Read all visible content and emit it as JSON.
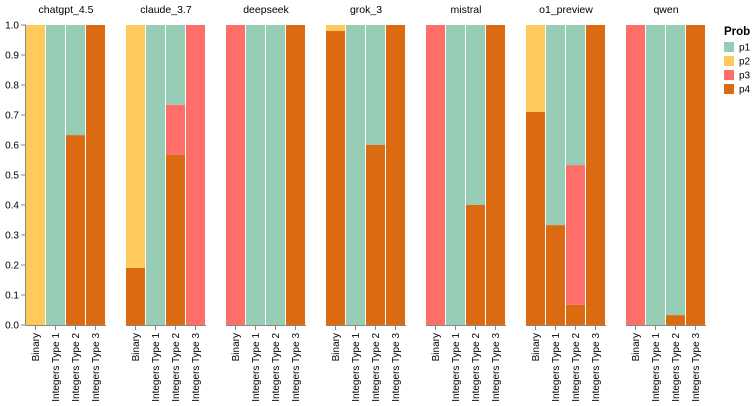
{
  "chart_data": {
    "type": "bar",
    "stacked": "normalized",
    "facets": [
      "chatgpt_4.5",
      "claude_3.7",
      "deepseek",
      "grok_3",
      "mistral",
      "o1_preview",
      "qwen"
    ],
    "categories": [
      "Binary",
      "Integers Type 1",
      "Integers Type 2",
      "Integers Type 3"
    ],
    "ylim": [
      0,
      1.0
    ],
    "yticks": [
      "0.0",
      "0.1",
      "0.2",
      "0.3",
      "0.4",
      "0.5",
      "0.6",
      "0.7",
      "0.8",
      "0.9",
      "1.0"
    ],
    "legend": {
      "title": "Prob",
      "entries": [
        {
          "name": "p1",
          "color": "#96cdb4"
        },
        {
          "name": "p2",
          "color": "#ffc95c"
        },
        {
          "name": "p3",
          "color": "#ff6e69"
        },
        {
          "name": "p4",
          "color": "#db6a10"
        }
      ]
    },
    "series": [
      {
        "name": "p4",
        "color": "#db6a10",
        "values": {
          "chatgpt_4.5": [
            0,
            0,
            0.633,
            1.0
          ],
          "claude_3.7": [
            0.19,
            0,
            0.567,
            0
          ],
          "deepseek": [
            0,
            0,
            0,
            1.0
          ],
          "grok_3": [
            0.98,
            0,
            0.6,
            1.0
          ],
          "mistral": [
            0,
            0,
            0.4,
            1.0
          ],
          "o1_preview": [
            0.71,
            0.333,
            0.067,
            1.0
          ],
          "qwen": [
            0,
            0,
            0.033,
            1.0
          ]
        }
      },
      {
        "name": "p3",
        "color": "#ff6e69",
        "values": {
          "chatgpt_4.5": [
            0,
            0,
            0,
            0
          ],
          "claude_3.7": [
            0,
            0,
            0.167,
            1.0
          ],
          "deepseek": [
            1.0,
            0,
            0,
            0
          ],
          "grok_3": [
            0,
            0,
            0,
            0
          ],
          "mistral": [
            1.0,
            0,
            0,
            0
          ],
          "o1_preview": [
            0,
            0,
            0.466,
            0
          ],
          "qwen": [
            1.0,
            0,
            0,
            0
          ]
        }
      },
      {
        "name": "p2",
        "color": "#ffc95c",
        "values": {
          "chatgpt_4.5": [
            1.0,
            0,
            0,
            0
          ],
          "claude_3.7": [
            0.81,
            0,
            0,
            0
          ],
          "deepseek": [
            0,
            0,
            0,
            0
          ],
          "grok_3": [
            0.02,
            0,
            0,
            0
          ],
          "mistral": [
            0,
            0,
            0,
            0
          ],
          "o1_preview": [
            0.29,
            0,
            0,
            0
          ],
          "qwen": [
            0,
            0,
            0,
            0
          ]
        }
      },
      {
        "name": "p1",
        "color": "#96cdb4",
        "values": {
          "chatgpt_4.5": [
            0,
            1.0,
            0.367,
            0
          ],
          "claude_3.7": [
            0,
            1.0,
            0.266,
            0
          ],
          "deepseek": [
            0,
            1.0,
            1.0,
            0
          ],
          "grok_3": [
            0,
            1.0,
            0.4,
            0
          ],
          "mistral": [
            0,
            1.0,
            0.6,
            0
          ],
          "o1_preview": [
            0,
            0.667,
            0.467,
            0
          ],
          "qwen": [
            0,
            1.0,
            0.967,
            0
          ]
        }
      }
    ]
  }
}
